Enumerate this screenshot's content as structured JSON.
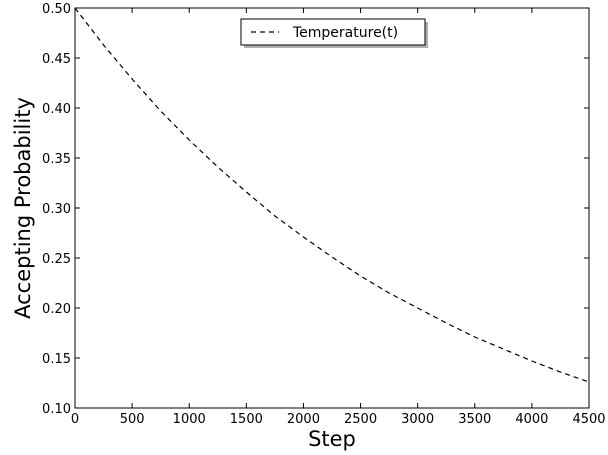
{
  "chart_data": {
    "type": "line",
    "title": "",
    "xlabel": "Step",
    "ylabel": "Accepting Probability",
    "xlim": [
      0,
      4500
    ],
    "ylim": [
      0.1,
      0.5
    ],
    "x_ticks": [
      "0",
      "500",
      "1000",
      "1500",
      "2000",
      "2500",
      "3000",
      "3500",
      "4000",
      "4500"
    ],
    "y_ticks": [
      "0.10",
      "0.15",
      "0.20",
      "0.25",
      "0.30",
      "0.35",
      "0.40",
      "0.45",
      "0.50"
    ],
    "grid": false,
    "legend_position": "upper-center",
    "series": [
      {
        "name": "Temperature(t)",
        "line_style": "dashed",
        "color": "#000000",
        "x": [
          0,
          250,
          500,
          750,
          1000,
          1250,
          1500,
          1750,
          2000,
          2250,
          2500,
          2750,
          3000,
          3250,
          3500,
          3750,
          4000,
          4250,
          4500
        ],
        "y": [
          0.5,
          0.463,
          0.429,
          0.397,
          0.368,
          0.341,
          0.316,
          0.292,
          0.271,
          0.251,
          0.232,
          0.215,
          0.2,
          0.185,
          0.171,
          0.159,
          0.147,
          0.136,
          0.126
        ]
      }
    ]
  }
}
